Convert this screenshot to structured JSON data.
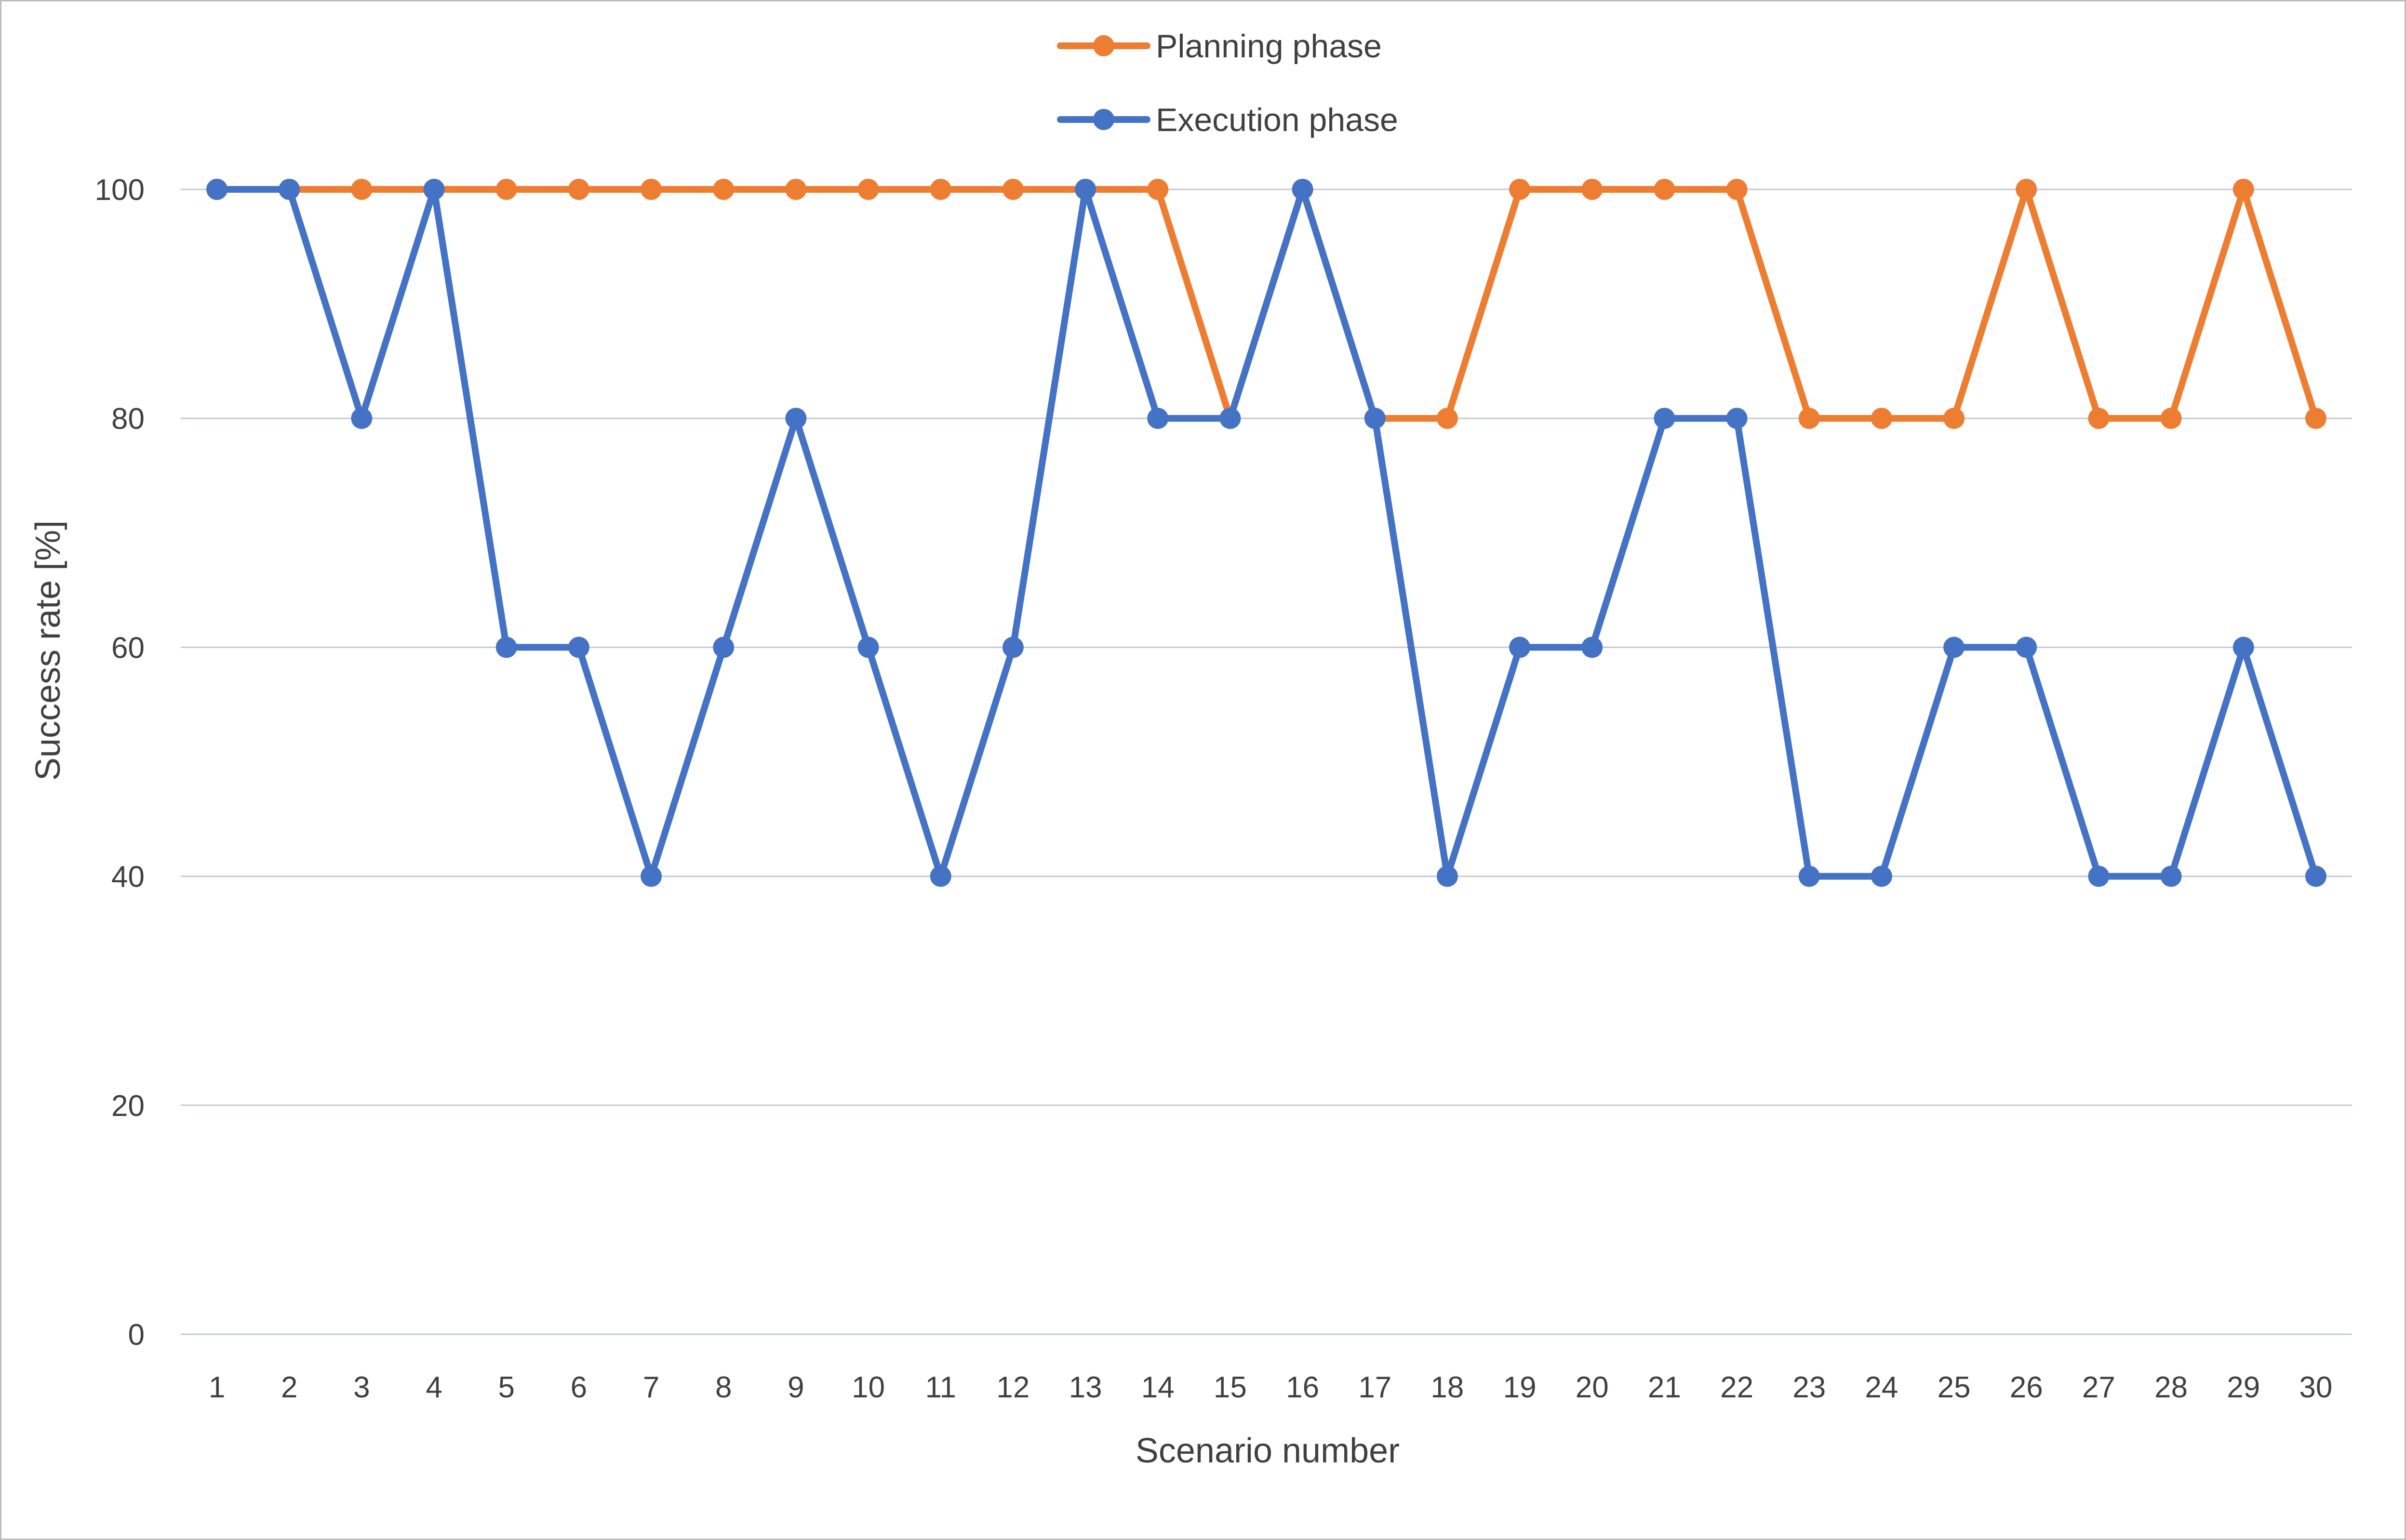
{
  "chart_data": {
    "type": "line",
    "x": [
      1,
      2,
      3,
      4,
      5,
      6,
      7,
      8,
      9,
      10,
      11,
      12,
      13,
      14,
      15,
      16,
      17,
      18,
      19,
      20,
      21,
      22,
      23,
      24,
      25,
      26,
      27,
      28,
      29,
      30
    ],
    "series": [
      {
        "name": "Planning phase",
        "color": "#ED7D31",
        "values": [
          100,
          100,
          100,
          100,
          100,
          100,
          100,
          100,
          100,
          100,
          100,
          100,
          100,
          100,
          80,
          100,
          80,
          80,
          100,
          100,
          100,
          100,
          80,
          80,
          80,
          100,
          80,
          80,
          100,
          80
        ]
      },
      {
        "name": "Execution phase",
        "color": "#4472C4",
        "values": [
          100,
          100,
          80,
          100,
          60,
          60,
          40,
          60,
          80,
          60,
          40,
          60,
          100,
          80,
          80,
          100,
          80,
          40,
          60,
          60,
          80,
          80,
          40,
          40,
          60,
          60,
          40,
          40,
          60,
          40
        ]
      }
    ],
    "xlabel": "Scenario number",
    "ylabel": "Success rate [%]",
    "ylim": [
      0,
      100
    ],
    "yticks": [
      0,
      20,
      40,
      60,
      80,
      100
    ],
    "grid": true,
    "legend_position": "top-center"
  }
}
